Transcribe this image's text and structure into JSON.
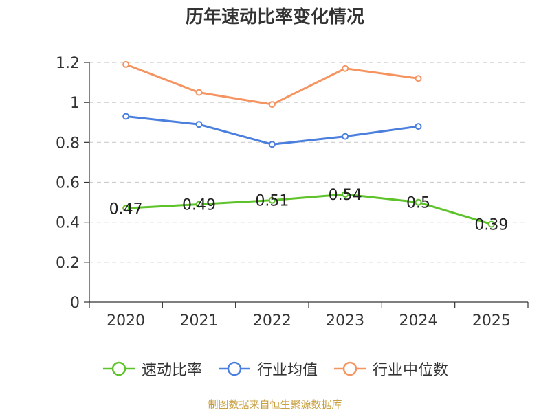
{
  "chart_data": {
    "type": "line",
    "title": "历年速动比率变化情况",
    "categories": [
      "2020",
      "2021",
      "2022",
      "2023",
      "2024",
      "2025"
    ],
    "y_ticks": [
      "0",
      "0.2",
      "0.4",
      "0.6",
      "0.8",
      "1",
      "1.2"
    ],
    "ylim": [
      0,
      1.2
    ],
    "grid": true,
    "series": [
      {
        "name": "速动比率",
        "color": "#5ec22b",
        "values": [
          0.47,
          0.49,
          0.51,
          0.54,
          0.5,
          0.39
        ],
        "labels": [
          "0.47",
          "0.49",
          "0.51",
          "0.54",
          "0.5",
          "0.39"
        ],
        "show_labels": true
      },
      {
        "name": "行业均值",
        "color": "#4a7fdd",
        "values": [
          0.93,
          0.89,
          0.79,
          0.83,
          0.88,
          null
        ]
      },
      {
        "name": "行业中位数",
        "color": "#f59461",
        "values": [
          1.19,
          1.05,
          0.99,
          1.17,
          1.12,
          null
        ]
      }
    ],
    "legend_position": "bottom"
  },
  "source": "制图数据来自恒生聚源数据库"
}
